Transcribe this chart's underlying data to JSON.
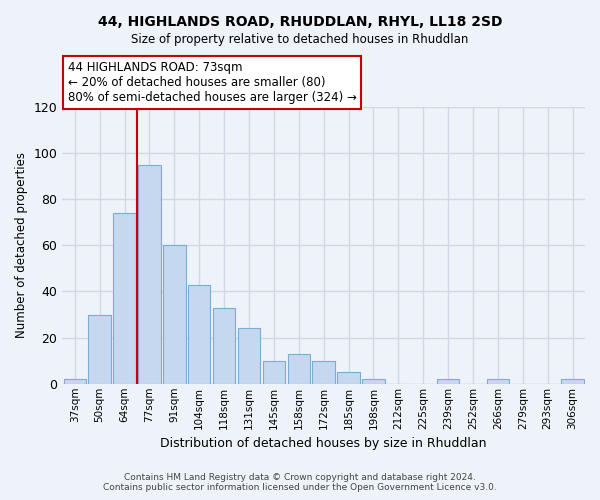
{
  "title": "44, HIGHLANDS ROAD, RHUDDLAN, RHYL, LL18 2SD",
  "subtitle": "Size of property relative to detached houses in Rhuddlan",
  "xlabel": "Distribution of detached houses by size in Rhuddlan",
  "ylabel": "Number of detached properties",
  "categories": [
    "37sqm",
    "50sqm",
    "64sqm",
    "77sqm",
    "91sqm",
    "104sqm",
    "118sqm",
    "131sqm",
    "145sqm",
    "158sqm",
    "172sqm",
    "185sqm",
    "198sqm",
    "212sqm",
    "225sqm",
    "239sqm",
    "252sqm",
    "266sqm",
    "279sqm",
    "293sqm",
    "306sqm"
  ],
  "values": [
    2,
    30,
    74,
    95,
    60,
    43,
    33,
    24,
    10,
    13,
    10,
    5,
    2,
    0,
    0,
    2,
    0,
    2,
    0,
    0,
    2
  ],
  "bar_color": "#c5d8f0",
  "bar_edge_color": "#7aadd4",
  "annotation_title": "44 HIGHLANDS ROAD: 73sqm",
  "annotation_line1": "← 20% of detached houses are smaller (80)",
  "annotation_line2": "80% of semi-detached houses are larger (324) →",
  "annotation_box_color": "#ffffff",
  "annotation_box_edge": "#cc0000",
  "highlight_line_color": "#cc0000",
  "ylim": [
    0,
    120
  ],
  "yticks": [
    0,
    20,
    40,
    60,
    80,
    100,
    120
  ],
  "footer_line1": "Contains HM Land Registry data © Crown copyright and database right 2024.",
  "footer_line2": "Contains public sector information licensed under the Open Government Licence v3.0.",
  "background_color": "#eef2f9",
  "grid_color": "#d0d8e8"
}
